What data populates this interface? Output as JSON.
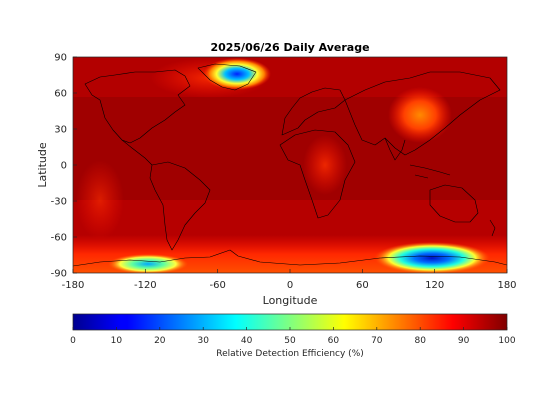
{
  "title": "2025/06/26 Daily Average",
  "x_axis": {
    "label": "Longitude",
    "ticks": [
      "-180",
      "-120",
      "-60",
      "0",
      "60",
      "120",
      "180"
    ]
  },
  "y_axis": {
    "label": "Latitude",
    "ticks": [
      "90",
      "60",
      "30",
      "0",
      "-30",
      "-60",
      "-90"
    ]
  },
  "colorbar": {
    "label": "Relative Detection Efficiency (%)",
    "ticks": [
      "0",
      "10",
      "20",
      "30",
      "40",
      "50",
      "60",
      "70",
      "80",
      "90",
      "100"
    ],
    "colormap": "jet",
    "range": [
      0,
      100
    ]
  },
  "chart_data": {
    "type": "heatmap",
    "title": "2025/06/26 Daily Average",
    "xlabel": "Longitude",
    "ylabel": "Latitude",
    "xlim": [
      -180,
      180
    ],
    "ylim": [
      -90,
      90
    ],
    "x_ticks": [
      -180,
      -120,
      -60,
      0,
      60,
      120,
      180
    ],
    "y_ticks": [
      90,
      60,
      30,
      0,
      -30,
      -60,
      -90
    ],
    "colorbar_label": "Relative Detection Efficiency (%)",
    "colorbar_range": [
      0,
      100
    ],
    "background_value": 97,
    "features": [
      {
        "lon": -40,
        "lat": 75,
        "value": 25
      },
      {
        "lon": -115,
        "lat": -82,
        "value": 45
      },
      {
        "lon": 120,
        "lat": -78,
        "value": 5
      },
      {
        "lon": 120,
        "lat": 40,
        "value": 85
      },
      {
        "lon": 25,
        "lat": 0,
        "value": 90
      }
    ],
    "coastlines": true
  }
}
